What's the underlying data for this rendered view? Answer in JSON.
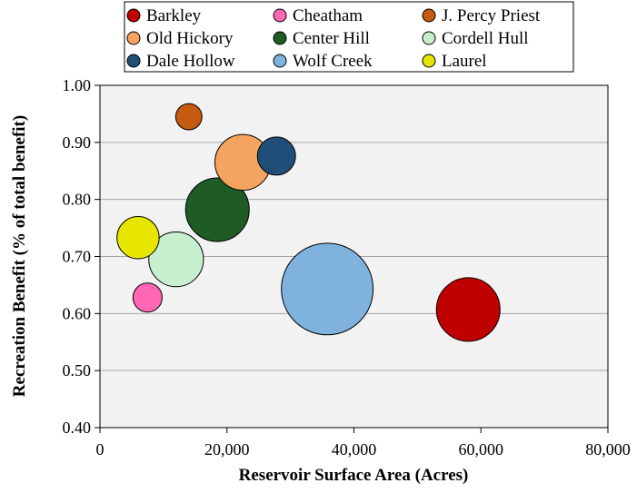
{
  "chart_data": {
    "type": "bubble",
    "xlabel": "Reservoir Surface Area (Acres)",
    "ylabel": "Recreation Benefit (% of total benefit)",
    "xlim": [
      0,
      80000
    ],
    "ylim": [
      0.4,
      1.0
    ],
    "x_ticks": [
      0,
      20000,
      40000,
      60000,
      80000
    ],
    "x_tick_labels": [
      "0",
      "20,000",
      "40,000",
      "60,000",
      "80,000"
    ],
    "y_ticks": [
      0.4,
      0.5,
      0.6,
      0.7,
      0.8,
      0.9,
      1.0
    ],
    "y_tick_labels": [
      "0.40",
      "0.50",
      "0.60",
      "0.70",
      "0.80",
      "0.90",
      "1.00"
    ],
    "grid": true,
    "legend_position": "top",
    "bubble_size_note": "bubble area proportional to an unlabeled magnitude; relative sizes given",
    "series": [
      {
        "name": "Barkley",
        "x": 58000,
        "y": 0.607,
        "size": 1.0,
        "color": "#c00000"
      },
      {
        "name": "Cheatham",
        "x": 7500,
        "y": 0.628,
        "size": 0.21,
        "color": "#ff66b3"
      },
      {
        "name": "J. Percy Priest",
        "x": 14000,
        "y": 0.945,
        "size": 0.17,
        "color": "#c55a11"
      },
      {
        "name": "Old Hickory",
        "x": 22500,
        "y": 0.865,
        "size": 0.77,
        "color": "#f4a460"
      },
      {
        "name": "Center Hill",
        "x": 18500,
        "y": 0.782,
        "size": 1.0,
        "color": "#1e5b25"
      },
      {
        "name": "Cordell Hull",
        "x": 12000,
        "y": 0.695,
        "size": 0.74,
        "color": "#c6efce"
      },
      {
        "name": "Dale Hollow",
        "x": 27800,
        "y": 0.876,
        "size": 0.36,
        "color": "#1f4e79"
      },
      {
        "name": "Wolf Creek",
        "x": 35800,
        "y": 0.643,
        "size": 2.08,
        "color": "#7fb2dd"
      },
      {
        "name": "Laurel",
        "x": 6000,
        "y": 0.733,
        "size": 0.44,
        "color": "#e6e600"
      }
    ]
  }
}
